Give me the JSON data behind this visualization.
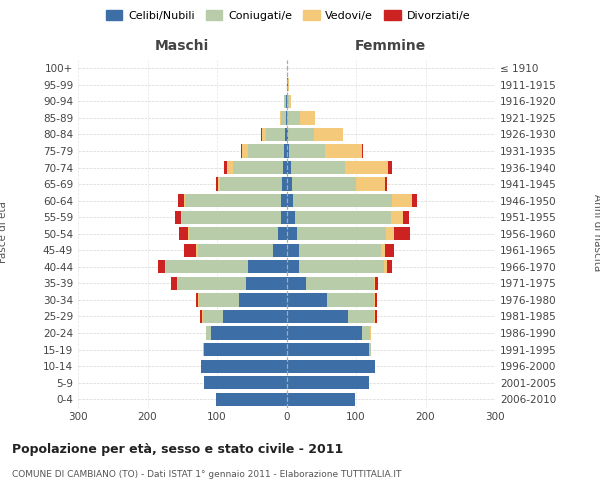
{
  "age_groups": [
    "0-4",
    "5-9",
    "10-14",
    "15-19",
    "20-24",
    "25-29",
    "30-34",
    "35-39",
    "40-44",
    "45-49",
    "50-54",
    "55-59",
    "60-64",
    "65-69",
    "70-74",
    "75-79",
    "80-84",
    "85-89",
    "90-94",
    "95-99",
    "100+"
  ],
  "birth_years": [
    "2006-2010",
    "2001-2005",
    "1996-2000",
    "1991-1995",
    "1986-1990",
    "1981-1985",
    "1976-1980",
    "1971-1975",
    "1966-1970",
    "1961-1965",
    "1956-1960",
    "1951-1955",
    "1946-1950",
    "1941-1945",
    "1936-1940",
    "1931-1935",
    "1926-1930",
    "1921-1925",
    "1916-1920",
    "1911-1915",
    "≤ 1910"
  ],
  "male_celibi": [
    102,
    118,
    123,
    118,
    108,
    92,
    68,
    58,
    55,
    20,
    12,
    8,
    8,
    7,
    5,
    4,
    2,
    1,
    1,
    0,
    0
  ],
  "male_coniugati": [
    0,
    0,
    0,
    2,
    8,
    28,
    58,
    98,
    118,
    108,
    128,
    142,
    138,
    88,
    72,
    52,
    28,
    7,
    2,
    0,
    0
  ],
  "male_vedovi": [
    0,
    0,
    0,
    0,
    0,
    2,
    2,
    2,
    2,
    2,
    2,
    2,
    2,
    4,
    8,
    8,
    5,
    2,
    0,
    0,
    0
  ],
  "male_divorziati": [
    0,
    0,
    0,
    0,
    0,
    2,
    2,
    8,
    10,
    18,
    12,
    8,
    8,
    2,
    5,
    2,
    1,
    0,
    0,
    0,
    0
  ],
  "female_nubili": [
    98,
    118,
    128,
    118,
    108,
    88,
    58,
    28,
    18,
    18,
    15,
    12,
    10,
    8,
    6,
    4,
    2,
    1,
    1,
    2,
    0
  ],
  "female_coniugate": [
    0,
    0,
    0,
    4,
    12,
    38,
    68,
    98,
    122,
    118,
    128,
    138,
    142,
    92,
    78,
    52,
    38,
    18,
    2,
    0,
    0
  ],
  "female_vedove": [
    0,
    0,
    0,
    0,
    2,
    2,
    2,
    2,
    4,
    6,
    12,
    18,
    28,
    42,
    62,
    52,
    42,
    22,
    4,
    2,
    0
  ],
  "female_divorziate": [
    0,
    0,
    0,
    0,
    0,
    2,
    2,
    4,
    8,
    12,
    22,
    8,
    8,
    2,
    6,
    2,
    0,
    0,
    0,
    0,
    0
  ],
  "colors": {
    "celibi": "#3d6ea5",
    "coniugati": "#b8ccaa",
    "vedovi": "#f5c97a",
    "divorziati": "#cc2222"
  },
  "title": "Popolazione per età, sesso e stato civile - 2011",
  "subtitle": "COMUNE DI CAMBIANO (TO) - Dati ISTAT 1° gennaio 2011 - Elaborazione TUTTITALIA.IT",
  "header_left": "Maschi",
  "header_right": "Femmine",
  "ylabel_left": "Fasce di età",
  "ylabel_right": "Anni di nascita",
  "xlim": 300,
  "xticks": [
    -300,
    -200,
    -100,
    0,
    100,
    200,
    300
  ],
  "legend_labels": [
    "Celibi/Nubili",
    "Coniugati/e",
    "Vedovi/e",
    "Divorziati/e"
  ],
  "bg_color": "#ffffff",
  "grid_color": "#cccccc"
}
